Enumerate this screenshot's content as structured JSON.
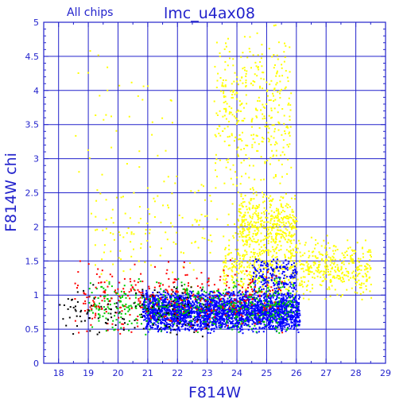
{
  "chart_data": {
    "type": "scatter",
    "title": "lmc_u4ax08",
    "subtitle": "All chips",
    "xlabel": "F814W",
    "ylabel": "F814W chi",
    "xlim": [
      17.5,
      29
    ],
    "ylim": [
      0,
      5
    ],
    "xticks": [
      "18",
      "19",
      "20",
      "21",
      "22",
      "23",
      "24",
      "25",
      "26",
      "27",
      "28",
      "29"
    ],
    "yticks": [
      "0",
      "0.5",
      "1",
      "1.5",
      "2",
      "2.5",
      "3",
      "3.5",
      "4",
      "4.5",
      "5"
    ],
    "grid": true,
    "colors": {
      "axis": "#2222cc",
      "grid": "#2222cc",
      "yellow": "#ffff00",
      "blue": "#0000ff",
      "green": "#00cc00",
      "red": "#ff0000",
      "black": "#000000"
    },
    "series": [
      {
        "color": "yellow",
        "description_points": "high-chi broad cloud",
        "clusters": [
          {
            "x": [
              23.5,
              28.5
            ],
            "y": [
              0.9,
              1.9
            ],
            "n": 700
          },
          {
            "x": [
              24.0,
              26.0
            ],
            "y": [
              1.5,
              2.6
            ],
            "n": 450
          },
          {
            "x": [
              23.2,
              25.8
            ],
            "y": [
              2.4,
              5.0
            ],
            "n": 380
          },
          {
            "x": [
              19.0,
              24.0
            ],
            "y": [
              1.0,
              3.0
            ],
            "n": 140
          },
          {
            "x": [
              18.5,
              22.0
            ],
            "y": [
              2.5,
              4.8
            ],
            "n": 35
          }
        ]
      },
      {
        "color": "blue",
        "clusters": [
          {
            "x": [
              20.8,
              26.1
            ],
            "y": [
              0.45,
              1.1
            ],
            "n": 2600
          },
          {
            "x": [
              24.5,
              26.0
            ],
            "y": [
              1.0,
              1.6
            ],
            "n": 180
          }
        ]
      },
      {
        "color": "green",
        "clusters": [
          {
            "x": [
              19.0,
              26.0
            ],
            "y": [
              0.4,
              1.3
            ],
            "n": 500
          }
        ]
      },
      {
        "color": "red",
        "clusters": [
          {
            "x": [
              18.5,
              25.5
            ],
            "y": [
              0.4,
              1.6
            ],
            "n": 320
          }
        ]
      },
      {
        "color": "black",
        "clusters": [
          {
            "x": [
              18.0,
              23.0
            ],
            "y": [
              0.35,
              1.2
            ],
            "n": 120
          }
        ]
      }
    ]
  }
}
